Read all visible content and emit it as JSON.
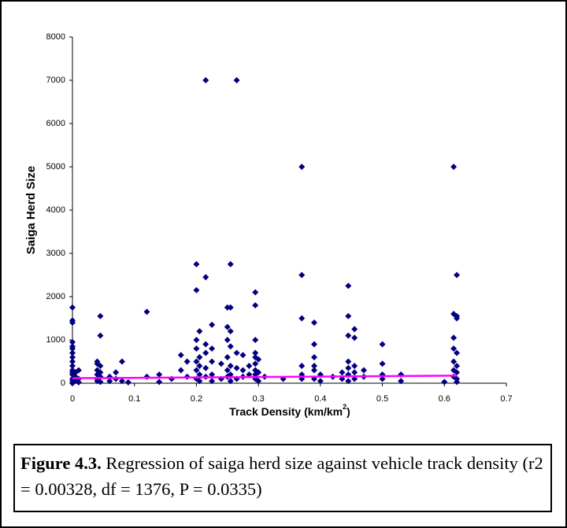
{
  "chart_data": {
    "type": "scatter",
    "ylabel": "Saiga Herd Size",
    "xlabel": [
      "Track Density (km/km",
      "2",
      ")"
    ],
    "caption": {
      "label": "Figure 4.3.",
      "text": "Regression of saiga herd size against vehicle track density (r2 = 0.00328, df = 1376, P = 0.0335)"
    },
    "color": "#000080",
    "xlim": [
      0,
      0.7
    ],
    "xticks": [
      0,
      0.1,
      0.2,
      0.3,
      0.4,
      0.5,
      0.6,
      0.7
    ],
    "ylim": [
      0,
      8000
    ],
    "yticks": [
      0,
      1000,
      2000,
      3000,
      4000,
      5000,
      6000,
      7000,
      8000
    ],
    "x": [
      0,
      0,
      0,
      0,
      0,
      0,
      0,
      0,
      0,
      0,
      0,
      0,
      0,
      0,
      0,
      0,
      0.005,
      0.005,
      0.005,
      0.01,
      0.01,
      0.01,
      0.04,
      0.04,
      0.04,
      0.04,
      0.04,
      0.04,
      0.045,
      0.045,
      0.045,
      0.045,
      0.045,
      0.045,
      0.06,
      0.06,
      0.07,
      0.07,
      0.08,
      0.08,
      0.09,
      0.12,
      0.12,
      0.14,
      0.14,
      0.16,
      0.175,
      0.175,
      0.185,
      0.185,
      0.2,
      0.2,
      0.2,
      0.2,
      0.2,
      0.2,
      0.2,
      0.205,
      0.205,
      0.205,
      0.205,
      0.205,
      0.215,
      0.215,
      0.215,
      0.215,
      0.215,
      0.215,
      0.225,
      0.225,
      0.225,
      0.225,
      0.225,
      0.24,
      0.24,
      0.25,
      0.25,
      0.25,
      0.25,
      0.25,
      0.25,
      0.255,
      0.255,
      0.255,
      0.255,
      0.255,
      0.255,
      0.255,
      0.265,
      0.265,
      0.265,
      0.265,
      0.275,
      0.275,
      0.275,
      0.285,
      0.285,
      0.295,
      0.295,
      0.295,
      0.295,
      0.295,
      0.295,
      0.295,
      0.295,
      0.295,
      0.3,
      0.3,
      0.3,
      0.31,
      0.34,
      0.37,
      0.37,
      0.37,
      0.37,
      0.37,
      0.37,
      0.39,
      0.39,
      0.39,
      0.39,
      0.39,
      0.39,
      0.4,
      0.4,
      0.42,
      0.435,
      0.435,
      0.445,
      0.445,
      0.445,
      0.445,
      0.445,
      0.445,
      0.445,
      0.455,
      0.455,
      0.455,
      0.455,
      0.455,
      0.47,
      0.47,
      0.5,
      0.5,
      0.5,
      0.5,
      0.53,
      0.53,
      0.6,
      0.615,
      0.615,
      0.615,
      0.615,
      0.615,
      0.615,
      0.615,
      0.62,
      0.62,
      0.62,
      0.62,
      0.62,
      0.62,
      0.62,
      0.62
    ],
    "values": [
      1750,
      1450,
      1400,
      950,
      850,
      800,
      700,
      600,
      500,
      400,
      300,
      250,
      200,
      100,
      50,
      0,
      250,
      150,
      50,
      300,
      100,
      20,
      500,
      450,
      300,
      200,
      100,
      50,
      1550,
      1100,
      400,
      250,
      150,
      30,
      150,
      50,
      250,
      100,
      500,
      50,
      20,
      1650,
      150,
      200,
      30,
      100,
      650,
      300,
      500,
      150,
      2750,
      2150,
      1000,
      800,
      500,
      300,
      100,
      1200,
      600,
      400,
      200,
      50,
      7000,
      2450,
      900,
      700,
      350,
      150,
      1350,
      800,
      500,
      200,
      50,
      450,
      100,
      1750,
      1300,
      1000,
      600,
      300,
      150,
      2750,
      1750,
      1200,
      850,
      400,
      200,
      50,
      7000,
      700,
      350,
      100,
      650,
      300,
      150,
      400,
      200,
      2100,
      1800,
      1000,
      700,
      600,
      450,
      300,
      200,
      100,
      550,
      250,
      50,
      150,
      100,
      5000,
      2500,
      1500,
      400,
      200,
      100,
      1400,
      900,
      600,
      400,
      300,
      100,
      200,
      50,
      150,
      250,
      100,
      2250,
      1550,
      1100,
      500,
      350,
      200,
      50,
      1250,
      1050,
      400,
      250,
      100,
      300,
      150,
      900,
      450,
      200,
      100,
      200,
      50,
      30,
      5000,
      1600,
      1050,
      800,
      500,
      300,
      150,
      2500,
      1550,
      1500,
      700,
      400,
      250,
      100,
      30
    ],
    "trendline": {
      "x": [
        0,
        0.62
      ],
      "y": [
        115,
        175
      ],
      "color": "#ff00ff"
    }
  }
}
